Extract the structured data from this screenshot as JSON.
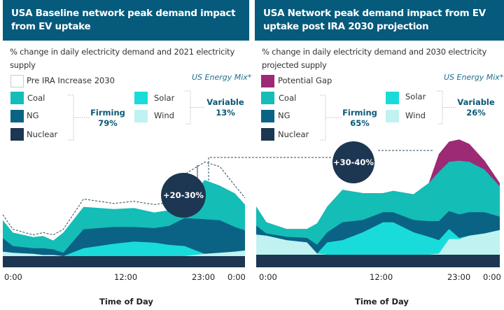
{
  "colors": {
    "header": "#065a7c",
    "pre_ira": "#ffffff",
    "potential_gap": "#9c2a74",
    "coal": "#14bdb6",
    "ng": "#0a6384",
    "nuclear": "#1d3651",
    "solar": "#19dcda",
    "wind": "#bff2f1",
    "circle": "#1d3651"
  },
  "legend_common": {
    "coal": "Coal",
    "ng": "NG",
    "nuclear": "Nuclear",
    "solar": "Solar",
    "wind": "Wind",
    "energy_mix": "US Energy Mix*",
    "firming_label": "Firming",
    "variable_label": "Variable"
  },
  "chart_data": [
    {
      "type": "area",
      "title": "USA Baseline network peak demand impact from EV uptake",
      "subtitle": "% change in daily electricity demand and 2021 electricity supply",
      "legend_top": "Pre IRA Increase 2030",
      "firming_pct": "79%",
      "variable_pct": "13%",
      "annotation": "+20-30%",
      "xlabel": "Time of Day",
      "x_ticks": [
        "0:00",
        "12:00",
        "23:00",
        "0:00"
      ],
      "stacking": "cumulative top of each layer, relative units",
      "x_hours": [
        0,
        1,
        3,
        4,
        5,
        6,
        8,
        11,
        13,
        15,
        16.5,
        18,
        20,
        21.5,
        23,
        24
      ],
      "series": [
        {
          "name": "Pre IRA Increase 2030",
          "values": [
            37,
            24,
            19,
            21,
            19,
            24,
            51,
            47,
            49,
            46,
            48,
            73,
            84,
            80,
            63,
            52
          ]
        },
        {
          "name": "Coal",
          "values": [
            32,
            21,
            17,
            18,
            14,
            21,
            44,
            42,
            43,
            39,
            41,
            46,
            68,
            63,
            56,
            46
          ]
        },
        {
          "name": "NG",
          "values": [
            16,
            9,
            7,
            7,
            6,
            3,
            24,
            26,
            26,
            25,
            27,
            34,
            33,
            32,
            26,
            23
          ]
        },
        {
          "name": "Solar",
          "values": [
            4,
            3,
            2,
            1,
            1,
            0,
            7,
            11,
            13,
            12,
            10,
            9,
            2,
            3,
            4,
            5
          ]
        },
        {
          "name": "Wind",
          "values": [
            4,
            3,
            2,
            1,
            1,
            0,
            0,
            0,
            0,
            0,
            0,
            0,
            2,
            3,
            4,
            5
          ]
        }
      ]
    },
    {
      "type": "area",
      "title": "USA Network peak demand impact from EV uptake post IRA 2030 projection",
      "subtitle": "% change in daily electricity demand and 2030 electricity projected supply",
      "legend_top": "Potential Gap",
      "firming_pct": "65%",
      "variable_pct": "26%",
      "annotation": "+30-40%",
      "xlabel": "Time of Day",
      "x_ticks": [
        "0:00",
        "12:00",
        "23:00",
        "0:00"
      ],
      "stacking": "cumulative top of each layer, relative units",
      "x_hours": [
        0,
        1,
        3,
        5,
        6,
        7,
        8.5,
        10.5,
        12.5,
        13.5,
        15.5,
        17,
        18,
        19,
        20,
        21,
        22.5,
        24
      ],
      "series": [
        {
          "name": "Potential Gap",
          "values": [
            43,
            29,
            23,
            23,
            28,
            43,
            58,
            55,
            55,
            57,
            54,
            64,
            90,
            101,
            103,
            99,
            84,
            64
          ]
        },
        {
          "name": "Coal",
          "values": [
            43,
            29,
            23,
            23,
            28,
            43,
            58,
            55,
            55,
            57,
            54,
            64,
            74,
            83,
            84,
            83,
            76,
            61
          ]
        },
        {
          "name": "NG",
          "values": [
            26,
            19,
            16,
            15,
            9,
            20,
            29,
            31,
            38,
            38,
            31,
            30,
            30,
            39,
            36,
            38,
            38,
            34
          ]
        },
        {
          "name": "Solar",
          "values": [
            18,
            17,
            13,
            11,
            1,
            11,
            13,
            20,
            29,
            29,
            20,
            16,
            13,
            23,
            15,
            17,
            19,
            22
          ]
        },
        {
          "name": "Wind",
          "values": [
            18,
            17,
            13,
            11,
            1,
            0,
            0,
            0,
            0,
            0,
            0,
            0,
            1,
            14,
            14,
            17,
            19,
            22
          ]
        }
      ]
    }
  ]
}
